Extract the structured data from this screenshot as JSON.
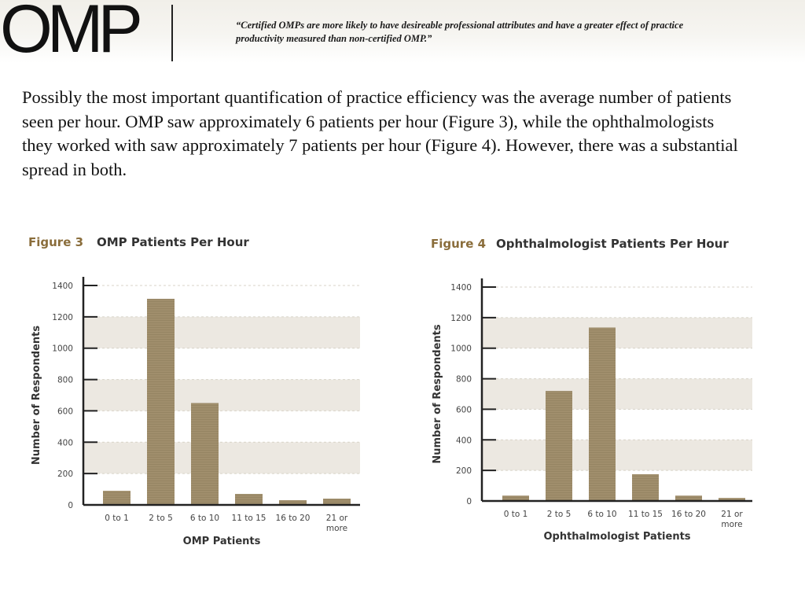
{
  "header": {
    "logo": "OMP",
    "quote": "“Certified OMPs are more likely to have desireable professional attributes and have a greater effect of practice productivity measured than non-certified OMP.”"
  },
  "body_text": "Possibly the most important quantification of practice efficiency was the average number of patients seen per hour. OMP saw approximately 6 patients per hour (Figure 3), while the ophthalmologists they worked with saw approximately 7 patients per hour (Figure 4). However, there was a substantial spread in both.",
  "figures": {
    "fig3_label": "Figure 3",
    "fig4_label": "Figure 4"
  },
  "colors": {
    "bar": "#a08e6c",
    "band": "#ece8e1",
    "figure_label": "#8a6d3b"
  },
  "chart_data": [
    {
      "type": "bar",
      "title": "OMP Patients Per Hour",
      "xlabel": "OMP Patients",
      "ylabel": "Number of Respondents",
      "categories": [
        "0 to 1",
        "2 to 5",
        "6 to 10",
        "11 to 15",
        "16 to 20",
        "21 or more"
      ],
      "values": [
        90,
        1315,
        650,
        70,
        30,
        40
      ],
      "ylim": [
        0,
        1400
      ],
      "yticks": [
        0,
        200,
        400,
        600,
        800,
        1000,
        1200,
        1400
      ],
      "grid": "alternating horizontal bands"
    },
    {
      "type": "bar",
      "title": "Ophthalmologist Patients Per Hour",
      "xlabel": "Ophthalmologist Patients",
      "ylabel": "Number of Respondents",
      "categories": [
        "0 to 1",
        "2 to 5",
        "6 to 10",
        "11 to 15",
        "16 to 20",
        "21 or more"
      ],
      "values": [
        35,
        720,
        1135,
        175,
        35,
        20
      ],
      "ylim": [
        0,
        1400
      ],
      "yticks": [
        0,
        200,
        400,
        600,
        800,
        1000,
        1200,
        1400
      ],
      "grid": "alternating horizontal bands"
    }
  ]
}
